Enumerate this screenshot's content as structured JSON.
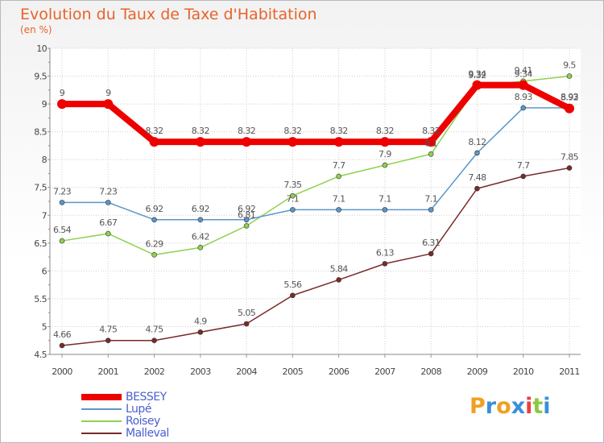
{
  "chart_data": {
    "type": "line",
    "title": "Evolution du Taux de Taxe d'Habitation",
    "subtitle": "(en %)",
    "x": [
      "2000",
      "2001",
      "2002",
      "2003",
      "2004",
      "2005",
      "2006",
      "2007",
      "2008",
      "2009",
      "2010",
      "2011"
    ],
    "ylim": [
      4.5,
      10
    ],
    "yticks": [
      "4.5",
      "5",
      "5.5",
      "6",
      "6.5",
      "7",
      "7.5",
      "8",
      "8.5",
      "9",
      "9.5",
      "10"
    ],
    "grid": true,
    "legend_position": "bottom-left",
    "series": [
      {
        "name": "BESSEY",
        "color": "#ee0000",
        "values": [
          9,
          9,
          8.32,
          8.32,
          8.32,
          8.32,
          8.32,
          8.32,
          8.32,
          9.34,
          9.34,
          8.92
        ],
        "labels": [
          "9",
          "9",
          "8.32",
          "8.32",
          "8.32",
          "8.32",
          "8.32",
          "8.32",
          "8.32",
          "9.34",
          "9.34",
          "8.92"
        ]
      },
      {
        "name": "Lupé",
        "color": "#5b96c8",
        "values": [
          7.23,
          7.23,
          6.92,
          6.92,
          6.92,
          7.1,
          7.1,
          7.1,
          7.1,
          8.12,
          8.93,
          8.93
        ],
        "labels": [
          "7.23",
          "7.23",
          "6.92",
          "6.92",
          "6.92",
          "7.1",
          "7.1",
          "7.1",
          "7.1",
          "8.12",
          "8.93",
          "8.93"
        ]
      },
      {
        "name": "Roisey",
        "color": "#8fd14f",
        "values": [
          6.54,
          6.67,
          6.29,
          6.42,
          6.81,
          7.35,
          7.7,
          7.9,
          8.1,
          9.32,
          9.41,
          9.5
        ],
        "labels": [
          "6.54",
          "6.67",
          "6.29",
          "6.42",
          "6.81",
          "7.35",
          "7.7",
          "7.9",
          "8.1",
          "9.32",
          "9.41",
          "9.5"
        ]
      },
      {
        "name": "Malleval",
        "color": "#7a2a2a",
        "values": [
          4.66,
          4.75,
          4.75,
          4.9,
          5.05,
          5.56,
          5.84,
          6.13,
          6.31,
          7.48,
          7.7,
          7.85
        ],
        "labels": [
          "4.66",
          "4.75",
          "4.75",
          "4.9",
          "5.05",
          "5.56",
          "5.84",
          "6.13",
          "6.31",
          "7.48",
          "7.7",
          "7.85"
        ]
      }
    ]
  },
  "logo": {
    "letters": [
      "P",
      "r",
      "o",
      "x",
      "i",
      "t",
      "i"
    ],
    "colors": [
      "#f0a020",
      "#3a8fd8",
      "#f0a020",
      "#3a8fd8",
      "#e84040",
      "#8cc840",
      "#3a8fd8"
    ]
  }
}
